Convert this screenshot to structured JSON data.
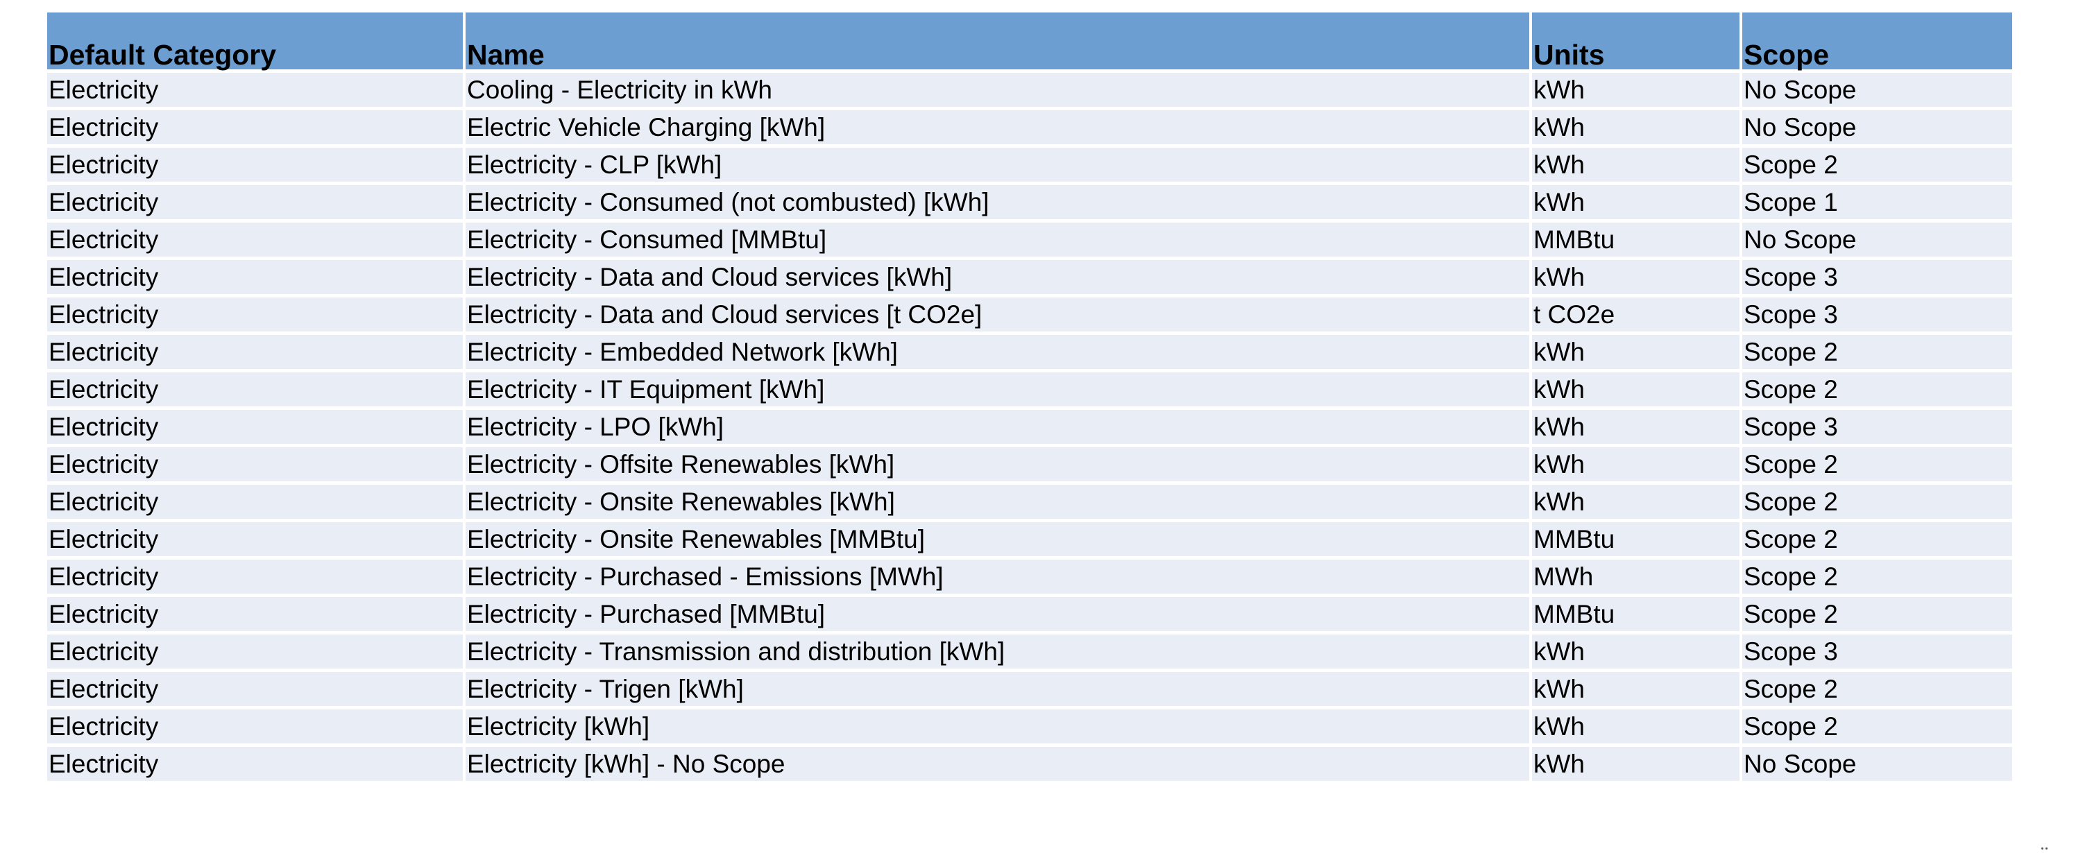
{
  "table": {
    "headers": [
      "Default Category",
      "Name",
      "Units",
      "Scope"
    ],
    "rows": [
      {
        "category": "Electricity",
        "name": "Cooling - Electricity in kWh",
        "units": "kWh",
        "scope": "No Scope",
        "mark": "#e052e0"
      },
      {
        "category": "Electricity",
        "name": "Electric Vehicle Charging [kWh]",
        "units": "kWh",
        "scope": "No Scope",
        "mark": null
      },
      {
        "category": "Electricity",
        "name": "Electricity - CLP [kWh]",
        "units": "kWh",
        "scope": "Scope 2",
        "mark": null
      },
      {
        "category": "Electricity",
        "name": "Electricity - Consumed (not combusted) [kWh]",
        "units": "kWh",
        "scope": "Scope 1",
        "mark": "#8fc44a"
      },
      {
        "category": "Electricity",
        "name": "Electricity - Consumed [MMBtu]",
        "units": "MMBtu",
        "scope": "No Scope",
        "mark": null
      },
      {
        "category": "Electricity",
        "name": "Electricity - Data and Cloud services [kWh]",
        "units": "kWh",
        "scope": "Scope 3",
        "mark": null
      },
      {
        "category": "Electricity",
        "name": "Electricity - Data and Cloud services [t CO2e]",
        "units": "t CO2e",
        "scope": "Scope 3",
        "mark": null
      },
      {
        "category": "Electricity",
        "name": "Electricity - Embedded Network [kWh]",
        "units": "kWh",
        "scope": "Scope 2",
        "mark": null
      },
      {
        "category": "Electricity",
        "name": "Electricity - IT Equipment [kWh]",
        "units": "kWh",
        "scope": "Scope 2",
        "mark": null
      },
      {
        "category": "Electricity",
        "name": "Electricity - LPO [kWh]",
        "units": "kWh",
        "scope": "Scope 3",
        "mark": null
      },
      {
        "category": "Electricity",
        "name": "Electricity - Offsite Renewables [kWh]",
        "units": "kWh",
        "scope": "Scope 2",
        "mark": null
      },
      {
        "category": "Electricity",
        "name": "Electricity - Onsite Renewables [kWh]",
        "units": "kWh",
        "scope": "Scope 2",
        "mark": null
      },
      {
        "category": "Electricity",
        "name": "Electricity - Onsite Renewables [MMBtu]",
        "units": "MMBtu",
        "scope": "Scope 2",
        "mark": null
      },
      {
        "category": "Electricity",
        "name": "Electricity - Purchased - Emissions [MWh]",
        "units": "MWh",
        "scope": "Scope 2",
        "mark": "#4db3e6"
      },
      {
        "category": "Electricity",
        "name": "Electricity - Purchased [MMBtu]",
        "units": "MMBtu",
        "scope": "Scope 2",
        "mark": null
      },
      {
        "category": "Electricity",
        "name": "Electricity - Transmission and distribution [kWh]",
        "units": "kWh",
        "scope": "Scope 3",
        "mark": "#b8b02a"
      },
      {
        "category": "Electricity",
        "name": "Electricity - Trigen [kWh]",
        "units": "kWh",
        "scope": "Scope 2",
        "mark": null
      },
      {
        "category": "Electricity",
        "name": "Electricity [kWh]",
        "units": "kWh",
        "scope": "Scope 2",
        "mark": null
      },
      {
        "category": "Electricity",
        "name": "Electricity [kWh] - No Scope",
        "units": "kWh",
        "scope": "No Scope",
        "mark": null
      }
    ]
  },
  "colors": {
    "header_bg": "#6d9ed2",
    "row_bg": "#e9edf5"
  }
}
